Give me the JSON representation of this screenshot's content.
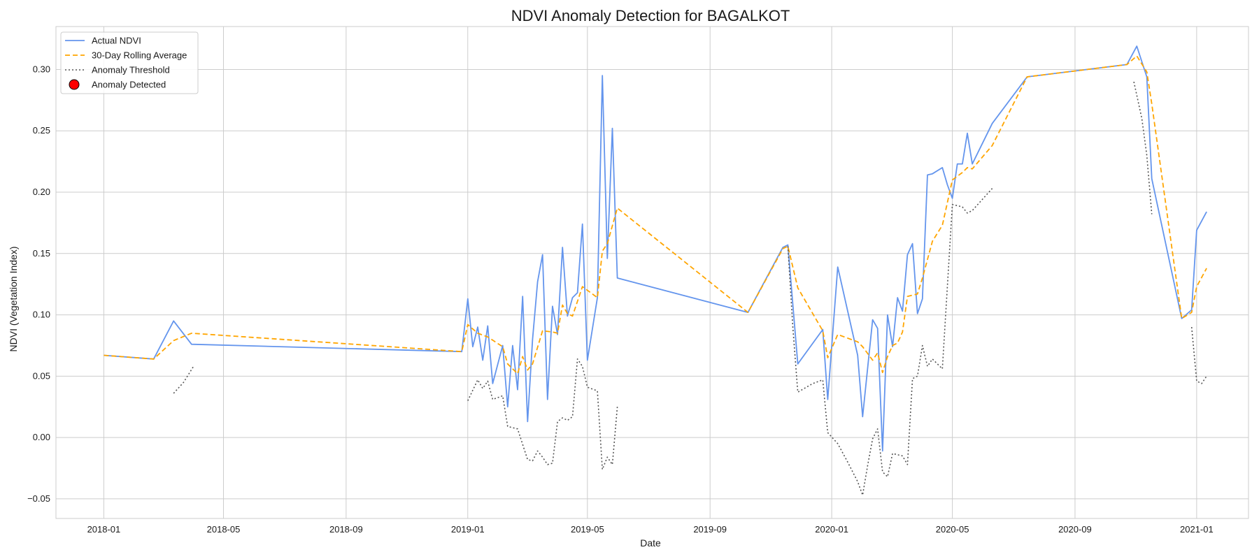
{
  "chart_data": {
    "type": "line",
    "title": "NDVI Anomaly Detection for BAGALKOT",
    "xlabel": "Date",
    "ylabel": "NDVI (Vegetation Index)",
    "xlim": [
      "2017-11-14",
      "2021-02-22"
    ],
    "ylim": [
      -0.066,
      0.335
    ],
    "grid": true,
    "legend_position": "top-left",
    "x_ticks": [
      {
        "date": "2018-01-01",
        "label": "2018-01"
      },
      {
        "date": "2018-05-01",
        "label": "2018-05"
      },
      {
        "date": "2018-09-01",
        "label": "2018-09"
      },
      {
        "date": "2019-01-01",
        "label": "2019-01"
      },
      {
        "date": "2019-05-01",
        "label": "2019-05"
      },
      {
        "date": "2019-09-01",
        "label": "2019-09"
      },
      {
        "date": "2020-01-01",
        "label": "2020-01"
      },
      {
        "date": "2020-05-01",
        "label": "2020-05"
      },
      {
        "date": "2020-09-01",
        "label": "2020-09"
      },
      {
        "date": "2021-01-01",
        "label": "2021-01"
      }
    ],
    "y_ticks": [
      {
        "value": -0.05,
        "label": "−0.05"
      },
      {
        "value": 0.0,
        "label": "0.00"
      },
      {
        "value": 0.05,
        "label": "0.05"
      },
      {
        "value": 0.1,
        "label": "0.10"
      },
      {
        "value": 0.15,
        "label": "0.15"
      },
      {
        "value": 0.2,
        "label": "0.20"
      },
      {
        "value": 0.25,
        "label": "0.25"
      },
      {
        "value": 0.3,
        "label": "0.30"
      }
    ],
    "series": [
      {
        "name": "Actual NDVI",
        "style": "solid",
        "color": "#6495ED",
        "points": [
          [
            "2018-01-01",
            0.067
          ],
          [
            "2018-02-20",
            0.064
          ],
          [
            "2018-03-12",
            0.095
          ],
          [
            "2018-03-30",
            0.076
          ],
          [
            "2018-12-26",
            0.07
          ],
          [
            "2019-01-01",
            0.113
          ],
          [
            "2019-01-06",
            0.074
          ],
          [
            "2019-01-11",
            0.09
          ],
          [
            "2019-01-16",
            0.063
          ],
          [
            "2019-01-21",
            0.091
          ],
          [
            "2019-01-26",
            0.044
          ],
          [
            "2019-02-05",
            0.075
          ],
          [
            "2019-02-10",
            0.025
          ],
          [
            "2019-02-15",
            0.075
          ],
          [
            "2019-02-20",
            0.039
          ],
          [
            "2019-02-25",
            0.115
          ],
          [
            "2019-03-02",
            0.013
          ],
          [
            "2019-03-07",
            0.08
          ],
          [
            "2019-03-12",
            0.127
          ],
          [
            "2019-03-17",
            0.149
          ],
          [
            "2019-03-22",
            0.031
          ],
          [
            "2019-03-27",
            0.107
          ],
          [
            "2019-04-01",
            0.084
          ],
          [
            "2019-04-06",
            0.155
          ],
          [
            "2019-04-11",
            0.099
          ],
          [
            "2019-04-16",
            0.114
          ],
          [
            "2019-04-21",
            0.118
          ],
          [
            "2019-04-26",
            0.174
          ],
          [
            "2019-05-01",
            0.063
          ],
          [
            "2019-05-11",
            0.114
          ],
          [
            "2019-05-16",
            0.295
          ],
          [
            "2019-05-21",
            0.146
          ],
          [
            "2019-05-26",
            0.252
          ],
          [
            "2019-05-31",
            0.13
          ],
          [
            "2019-10-09",
            0.102
          ],
          [
            "2019-11-13",
            0.155
          ],
          [
            "2019-11-18",
            0.157
          ],
          [
            "2019-11-28",
            0.06
          ],
          [
            "2019-12-23",
            0.088
          ],
          [
            "2019-12-28",
            0.031
          ],
          [
            "2020-01-07",
            0.139
          ],
          [
            "2020-01-27",
            0.067
          ],
          [
            "2020-02-01",
            0.017
          ],
          [
            "2020-02-11",
            0.096
          ],
          [
            "2020-02-16",
            0.089
          ],
          [
            "2020-02-21",
            -0.011
          ],
          [
            "2020-02-26",
            0.1
          ],
          [
            "2020-03-02",
            0.074
          ],
          [
            "2020-03-07",
            0.114
          ],
          [
            "2020-03-12",
            0.103
          ],
          [
            "2020-03-17",
            0.149
          ],
          [
            "2020-03-22",
            0.158
          ],
          [
            "2020-03-27",
            0.101
          ],
          [
            "2020-04-01",
            0.113
          ],
          [
            "2020-04-06",
            0.214
          ],
          [
            "2020-04-11",
            0.215
          ],
          [
            "2020-04-21",
            0.22
          ],
          [
            "2020-04-26",
            0.206
          ],
          [
            "2020-05-01",
            0.195
          ],
          [
            "2020-05-06",
            0.223
          ],
          [
            "2020-05-11",
            0.223
          ],
          [
            "2020-05-16",
            0.248
          ],
          [
            "2020-05-21",
            0.223
          ],
          [
            "2020-06-10",
            0.256
          ],
          [
            "2020-07-15",
            0.294
          ],
          [
            "2020-10-23",
            0.304
          ],
          [
            "2020-11-02",
            0.319
          ],
          [
            "2020-11-12",
            0.294
          ],
          [
            "2020-11-17",
            0.211
          ],
          [
            "2020-12-17",
            0.097
          ],
          [
            "2020-12-27",
            0.104
          ],
          [
            "2021-01-01",
            0.169
          ],
          [
            "2021-01-11",
            0.184
          ]
        ]
      },
      {
        "name": "30-Day Rolling Average",
        "style": "dashed",
        "color": "#FFA500",
        "points": [
          [
            "2018-01-01",
            0.067
          ],
          [
            "2018-02-20",
            0.064
          ],
          [
            "2018-03-12",
            0.079
          ],
          [
            "2018-03-30",
            0.085
          ],
          [
            "2018-12-26",
            0.07
          ],
          [
            "2019-01-01",
            0.092
          ],
          [
            "2019-01-11",
            0.085
          ],
          [
            "2019-01-21",
            0.082
          ],
          [
            "2019-02-05",
            0.074
          ],
          [
            "2019-02-10",
            0.06
          ],
          [
            "2019-02-20",
            0.052
          ],
          [
            "2019-02-25",
            0.066
          ],
          [
            "2019-03-02",
            0.055
          ],
          [
            "2019-03-07",
            0.06
          ],
          [
            "2019-03-17",
            0.087
          ],
          [
            "2019-03-27",
            0.086
          ],
          [
            "2019-04-01",
            0.085
          ],
          [
            "2019-04-06",
            0.108
          ],
          [
            "2019-04-11",
            0.101
          ],
          [
            "2019-04-16",
            0.099
          ],
          [
            "2019-04-26",
            0.123
          ],
          [
            "2019-05-11",
            0.114
          ],
          [
            "2019-05-16",
            0.152
          ],
          [
            "2019-05-21",
            0.158
          ],
          [
            "2019-05-31",
            0.187
          ],
          [
            "2019-10-09",
            0.102
          ],
          [
            "2019-11-13",
            0.154
          ],
          [
            "2019-11-18",
            0.156
          ],
          [
            "2019-11-28",
            0.122
          ],
          [
            "2019-12-23",
            0.087
          ],
          [
            "2019-12-28",
            0.065
          ],
          [
            "2020-01-07",
            0.084
          ],
          [
            "2020-01-27",
            0.078
          ],
          [
            "2020-02-01",
            0.074
          ],
          [
            "2020-02-11",
            0.063
          ],
          [
            "2020-02-16",
            0.069
          ],
          [
            "2020-02-21",
            0.053
          ],
          [
            "2020-02-26",
            0.066
          ],
          [
            "2020-03-02",
            0.075
          ],
          [
            "2020-03-07",
            0.077
          ],
          [
            "2020-03-12",
            0.086
          ],
          [
            "2020-03-17",
            0.115
          ],
          [
            "2020-03-27",
            0.117
          ],
          [
            "2020-04-01",
            0.13
          ],
          [
            "2020-04-11",
            0.16
          ],
          [
            "2020-04-21",
            0.173
          ],
          [
            "2020-05-01",
            0.21
          ],
          [
            "2020-05-06",
            0.213
          ],
          [
            "2020-05-11",
            0.216
          ],
          [
            "2020-05-16",
            0.22
          ],
          [
            "2020-05-21",
            0.219
          ],
          [
            "2020-06-10",
            0.238
          ],
          [
            "2020-07-15",
            0.294
          ],
          [
            "2020-10-23",
            0.304
          ],
          [
            "2020-11-02",
            0.311
          ],
          [
            "2020-11-12",
            0.298
          ],
          [
            "2020-11-17",
            0.272
          ],
          [
            "2020-12-17",
            0.097
          ],
          [
            "2020-12-27",
            0.102
          ],
          [
            "2021-01-01",
            0.123
          ],
          [
            "2021-01-11",
            0.138
          ]
        ]
      },
      {
        "name": "Anomaly Threshold",
        "style": "dotted",
        "color": "#555555",
        "segments": [
          [
            [
              "2018-03-12",
              0.036
            ],
            [
              "2018-03-22",
              0.045
            ],
            [
              "2018-04-01",
              0.058
            ]
          ],
          [
            [
              "2019-01-01",
              0.03
            ],
            [
              "2019-01-11",
              0.047
            ],
            [
              "2019-01-16",
              0.04
            ],
            [
              "2019-01-21",
              0.046
            ],
            [
              "2019-01-26",
              0.031
            ],
            [
              "2019-02-05",
              0.034
            ],
            [
              "2019-02-10",
              0.009
            ],
            [
              "2019-02-20",
              0.007
            ],
            [
              "2019-03-02",
              -0.018
            ],
            [
              "2019-03-07",
              -0.019
            ],
            [
              "2019-03-12",
              -0.011
            ],
            [
              "2019-03-17",
              -0.016
            ],
            [
              "2019-03-22",
              -0.022
            ],
            [
              "2019-03-27",
              -0.021
            ],
            [
              "2019-04-01",
              0.013
            ],
            [
              "2019-04-06",
              0.016
            ],
            [
              "2019-04-11",
              0.014
            ],
            [
              "2019-04-16",
              0.017
            ],
            [
              "2019-04-21",
              0.064
            ],
            [
              "2019-04-26",
              0.058
            ],
            [
              "2019-05-01",
              0.041
            ],
            [
              "2019-05-11",
              0.038
            ],
            [
              "2019-05-16",
              -0.026
            ],
            [
              "2019-05-21",
              -0.016
            ],
            [
              "2019-05-26",
              -0.022
            ],
            [
              "2019-05-31",
              0.025
            ]
          ],
          [
            [
              "2019-11-18",
              0.156
            ],
            [
              "2019-11-23",
              0.09
            ],
            [
              "2019-11-28",
              0.037
            ],
            [
              "2019-12-13",
              0.044
            ],
            [
              "2019-12-23",
              0.047
            ],
            [
              "2019-12-28",
              0.004
            ],
            [
              "2020-01-07",
              -0.005
            ],
            [
              "2020-01-17",
              -0.02
            ],
            [
              "2020-01-27",
              -0.036
            ],
            [
              "2020-02-01",
              -0.047
            ],
            [
              "2020-02-06",
              -0.023
            ],
            [
              "2020-02-11",
              -0.001
            ],
            [
              "2020-02-16",
              0.007
            ],
            [
              "2020-02-21",
              -0.028
            ],
            [
              "2020-02-26",
              -0.032
            ],
            [
              "2020-03-02",
              -0.013
            ],
            [
              "2020-03-12",
              -0.015
            ],
            [
              "2020-03-17",
              -0.022
            ],
            [
              "2020-03-22",
              0.048
            ],
            [
              "2020-03-27",
              0.05
            ],
            [
              "2020-04-01",
              0.075
            ],
            [
              "2020-04-06",
              0.058
            ],
            [
              "2020-04-11",
              0.064
            ],
            [
              "2020-04-21",
              0.056
            ],
            [
              "2020-05-01",
              0.19
            ],
            [
              "2020-05-11",
              0.188
            ],
            [
              "2020-05-16",
              0.183
            ],
            [
              "2020-05-21",
              0.185
            ],
            [
              "2020-06-10",
              0.203
            ]
          ],
          [
            [
              "2020-10-30",
              0.29
            ],
            [
              "2020-11-07",
              0.26
            ],
            [
              "2020-11-12",
              0.23
            ],
            [
              "2020-11-17",
              0.182
            ]
          ],
          [
            [
              "2020-12-27",
              0.09
            ],
            [
              "2021-01-01",
              0.046
            ],
            [
              "2021-01-06",
              0.044
            ],
            [
              "2021-01-11",
              0.05
            ]
          ]
        ]
      },
      {
        "name": "Anomaly Detected",
        "style": "marker",
        "color": "#FF0000",
        "points": []
      }
    ]
  }
}
